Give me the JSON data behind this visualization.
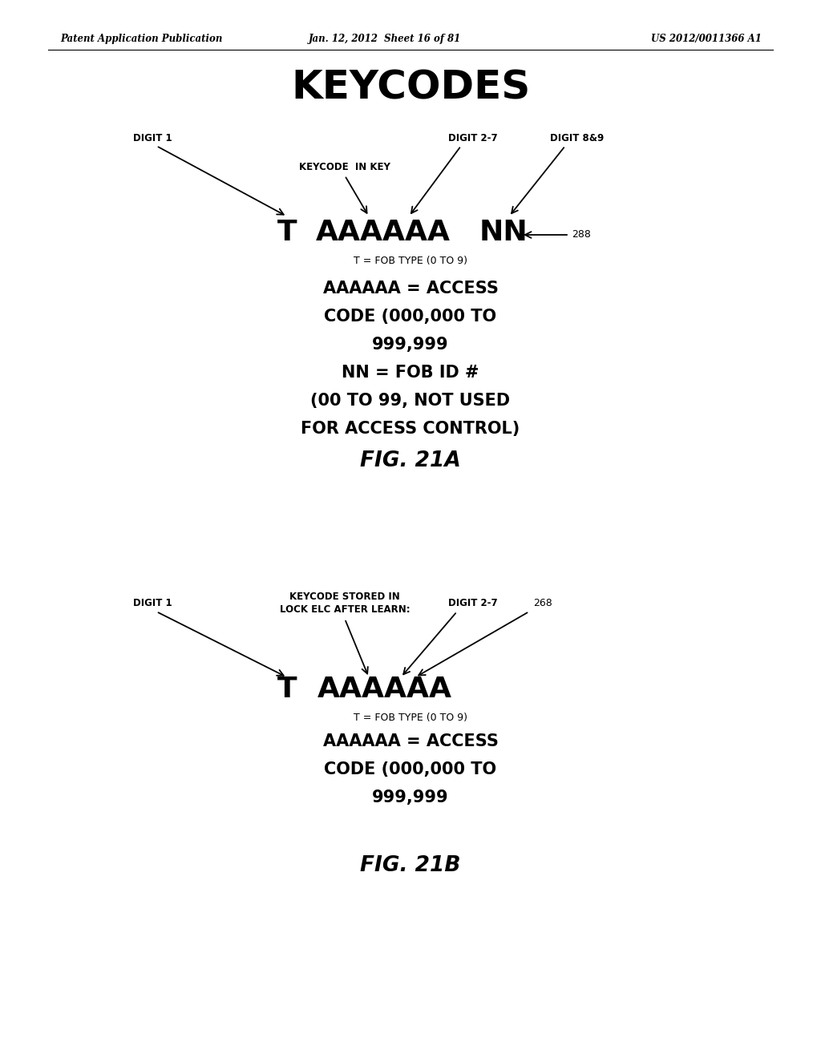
{
  "bg_color": "#ffffff",
  "header_left": "Patent Application Publication",
  "header_mid": "Jan. 12, 2012  Sheet 16 of 81",
  "header_right": "US 2012/0011366 A1",
  "title": "KEYCODES",
  "fig21a": {
    "digit1_label": "DIGIT 1",
    "digit27_label": "DIGIT 2-7",
    "digit89_label": "DIGIT 8&9",
    "keycode_label": "KEYCODE  IN KEY",
    "T_label": "T",
    "AAAAAA_label": "AAAAAA",
    "NN_label": "NN",
    "ref_288": "—288",
    "desc1": "T = FOB TYPE (0 TO 9)",
    "desc2_line1": "AAAAAA = ACCESS",
    "desc2_line2": "CODE (000,000 TO",
    "desc2_line3": "999,999",
    "desc2_line4": "NN = FOB ID #",
    "desc2_line5": "(00 TO 99, NOT USED",
    "desc2_line6": "FOR ACCESS CONTROL)",
    "fig_label": "FIG. 21A"
  },
  "fig21b": {
    "digit1_label": "DIGIT 1",
    "keycode_stored_line1": "KEYCODE STORED IN",
    "keycode_stored_line2": "LOCK ELC AFTER LEARN:",
    "digit27_label": "DIGIT 2-7",
    "ref_268": "268",
    "T_label": "T",
    "AAAAAA_label": "AAAAAA",
    "desc1": "T = FOB TYPE (0 TO 9)",
    "desc2_line1": "AAAAAA = ACCESS",
    "desc2_line2": "CODE (000,000 TO",
    "desc2_line3": "999,999",
    "fig_label": "FIG. 21B"
  }
}
